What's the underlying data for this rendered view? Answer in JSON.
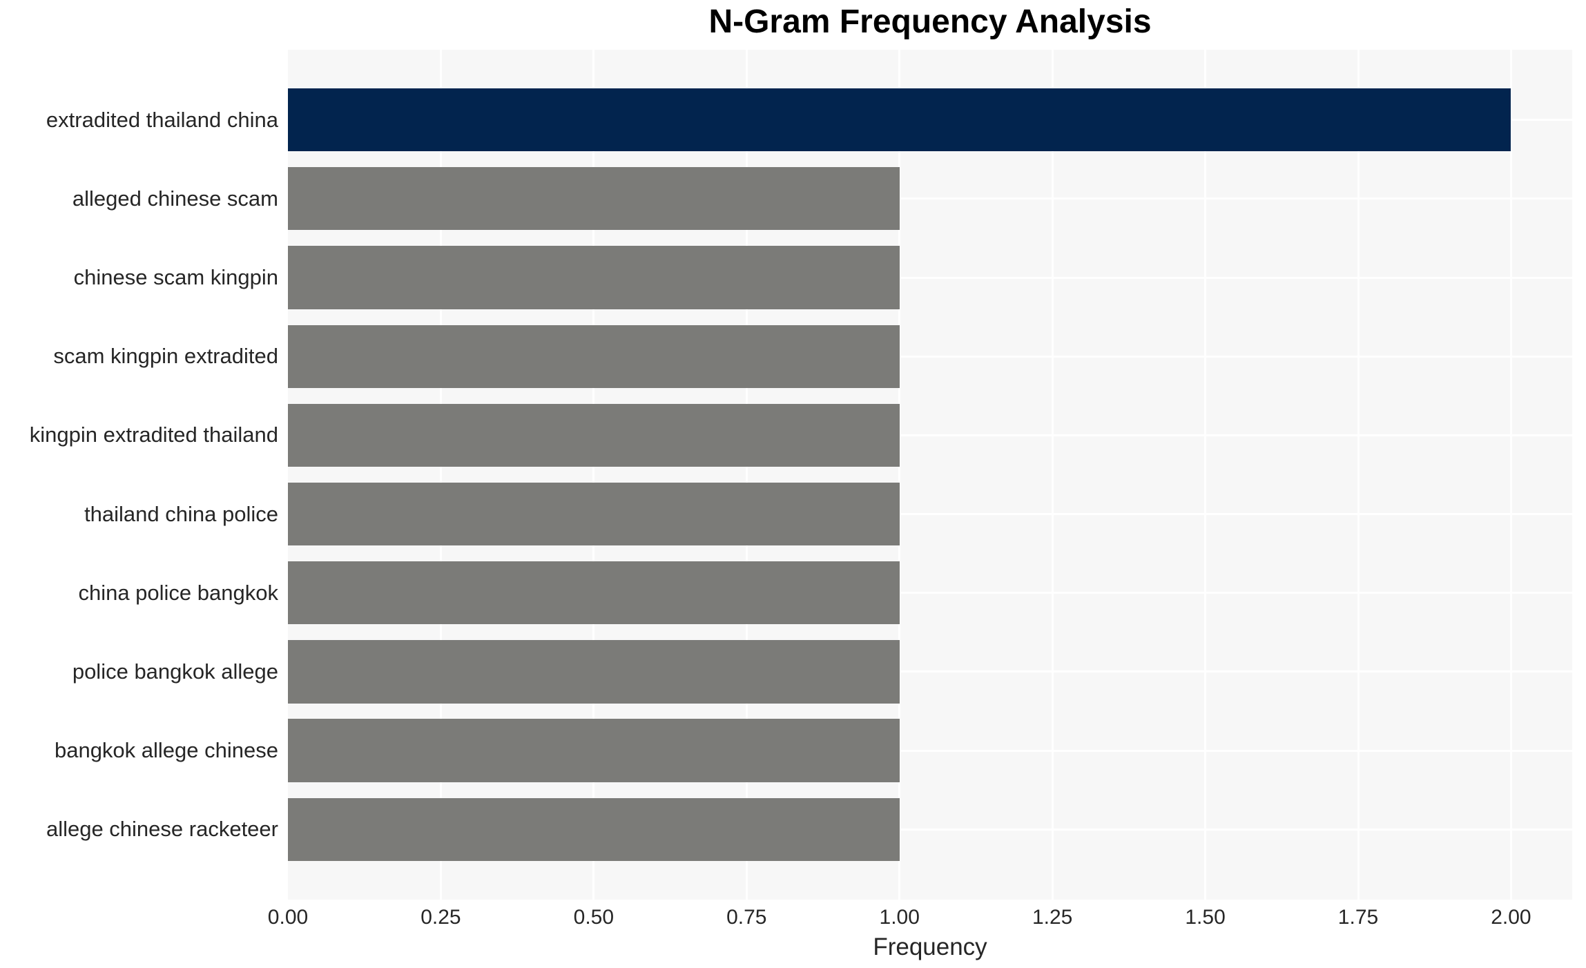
{
  "chart_data": {
    "type": "bar",
    "orientation": "horizontal",
    "title": "N-Gram Frequency Analysis",
    "xlabel": "Frequency",
    "ylabel": "",
    "categories": [
      "extradited thailand china",
      "alleged chinese scam",
      "chinese scam kingpin",
      "scam kingpin extradited",
      "kingpin extradited thailand",
      "thailand china police",
      "china police bangkok",
      "police bangkok allege",
      "bangkok allege chinese",
      "allege chinese racketeer"
    ],
    "values": [
      2,
      1,
      1,
      1,
      1,
      1,
      1,
      1,
      1,
      1
    ],
    "bar_colors": [
      "#02244e",
      "#7b7b78",
      "#7b7b78",
      "#7b7b78",
      "#7b7b78",
      "#7b7b78",
      "#7b7b78",
      "#7b7b78",
      "#7b7b78",
      "#7b7b78"
    ],
    "x_ticks": [
      0.0,
      0.25,
      0.5,
      0.75,
      1.0,
      1.25,
      1.5,
      1.75,
      2.0
    ],
    "x_tick_labels": [
      "0.00",
      "0.25",
      "0.50",
      "0.75",
      "1.00",
      "1.25",
      "1.50",
      "1.75",
      "2.00"
    ],
    "xlim": [
      0,
      2.1
    ],
    "grid": true,
    "legend": false,
    "colors": {
      "highlight_bar": "#02244e",
      "default_bar": "#7b7b78",
      "plot_background": "#f7f7f7",
      "grid_line": "#ffffff",
      "text": "#262626",
      "title_text": "#000000"
    }
  }
}
